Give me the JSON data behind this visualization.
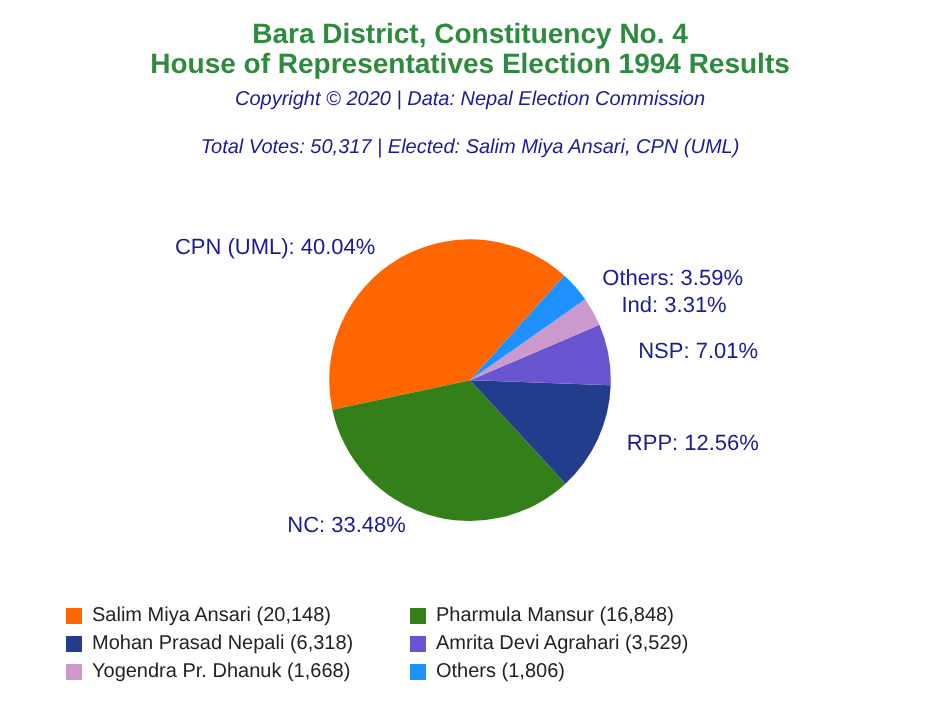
{
  "chart_data": {
    "type": "pie",
    "title": "Bara District, Constituency No. 4\nHouse of Representatives Election 1994 Results",
    "subtitle": "Copyright © 2020 | Data: Nepal Election Commission",
    "annotations": [
      "Total Votes: 50,317 | Elected: Salim Miya Ansari, CPN (UML)"
    ],
    "categories": [
      "Salim Miya Ansari (20,148)",
      "Pharmula Mansur (16,848)",
      "Mohan Prasad Nepali (6,318)",
      "Amrita Devi Agrahari (3,529)",
      "Yogendra Pr. Dhanuk (1,668)",
      "Others (1,806)"
    ],
    "values": [
      40.04,
      33.48,
      12.56,
      7.01,
      3.31,
      3.59
    ],
    "value_labels": [
      "CPN (UML): 40.04%",
      "NC: 33.48%",
      "RPP: 12.56%",
      "NSP: 7.01%",
      "Ind: 3.31%",
      "Others: 3.59%"
    ],
    "colors": [
      "#ff6600",
      "#33801a",
      "#223d8c",
      "#6a55d0",
      "#cc99cc",
      "#1e90ff"
    ],
    "legend": "bottom"
  }
}
